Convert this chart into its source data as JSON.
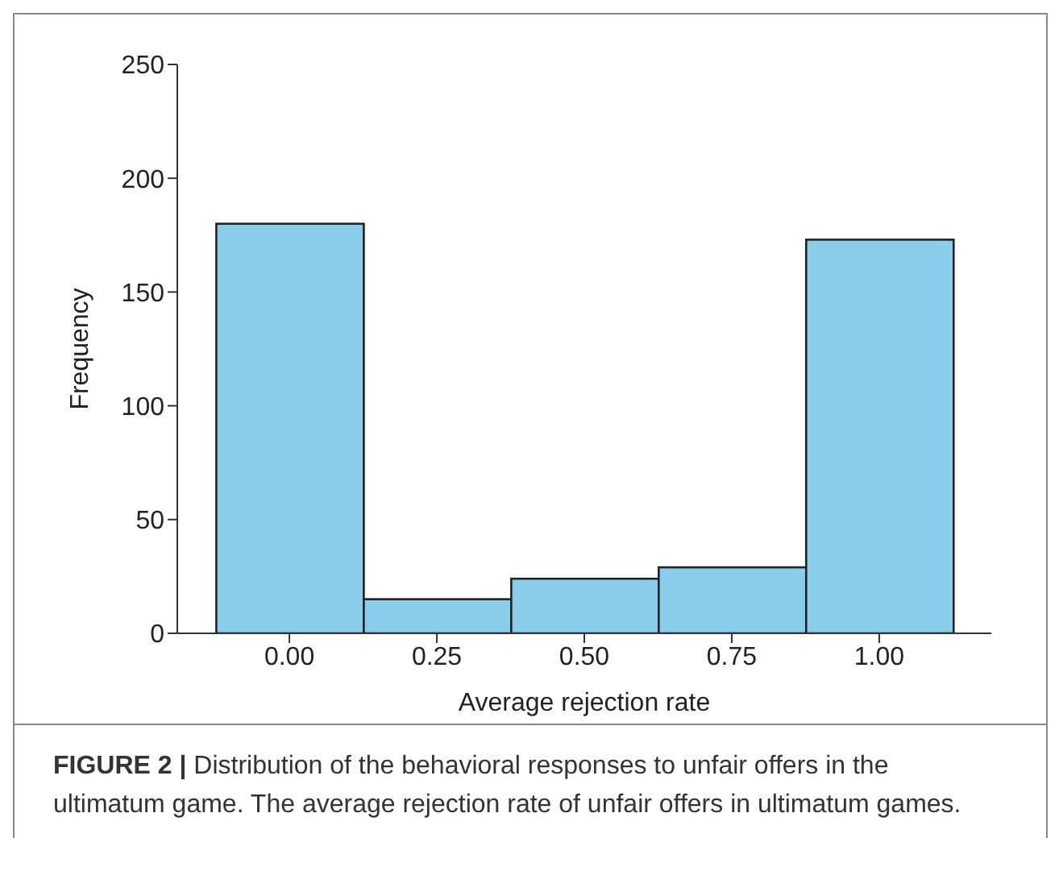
{
  "chart_data": {
    "type": "histogram",
    "xlabel": "Average rejection rate",
    "ylabel": "Frequency",
    "bins": [
      -0.125,
      0.125,
      0.375,
      0.625,
      0.875,
      1.125
    ],
    "values": [
      180,
      15,
      24,
      29,
      173
    ],
    "color": "#89cdea",
    "xlim": [
      -0.19,
      1.19
    ],
    "xticks": [
      {
        "value": 0,
        "label": "0.00"
      },
      {
        "value": 0.25,
        "label": "0.25"
      },
      {
        "value": 0.5,
        "label": "0.50"
      },
      {
        "value": 0.75,
        "label": "0.75"
      },
      {
        "value": 1,
        "label": "1.00"
      }
    ],
    "ylim": [
      0,
      250
    ],
    "yticks": [
      0,
      50,
      100,
      150,
      200,
      250
    ],
    "grid": false,
    "legend": false,
    "annotations": [
      "FIGURE 2 | Distribution of the behavioral responses to unfair offers in the ultimatum game. The average rejection rate of unfair offers in ultimatum games."
    ]
  }
}
